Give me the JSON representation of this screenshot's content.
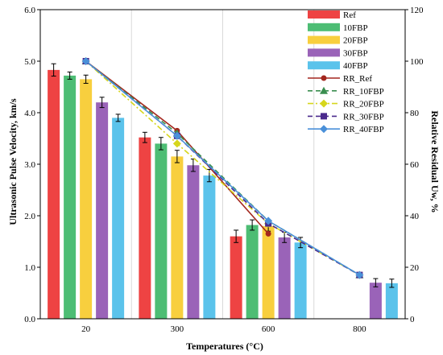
{
  "chart_data": {
    "type": "bar",
    "title": "",
    "categories": [
      "20",
      "300",
      "600",
      "800"
    ],
    "xlabel": "Temperatures (°C)",
    "ylabel": "Ultrasonic Pulse Velocity, km/s",
    "y2label": "Relative Residual Uw, %",
    "ylim": [
      0,
      6
    ],
    "y2lim": [
      0,
      120
    ],
    "yticks": [
      "0.0",
      "1.0",
      "2.0",
      "3.0",
      "4.0",
      "5.0",
      "6.0"
    ],
    "y2ticks": [
      "0",
      "20",
      "40",
      "60",
      "80",
      "100",
      "120"
    ],
    "grid": "vertical gridlines",
    "legend_position": "top-right",
    "bar_series": [
      {
        "name": "Ref",
        "color": "#EE4343",
        "values": [
          4.83,
          3.52,
          1.6,
          null
        ],
        "errors": [
          0.12,
          0.1,
          0.12,
          null
        ]
      },
      {
        "name": "10FBP",
        "color": "#4DBD74",
        "values": [
          4.72,
          3.4,
          1.82,
          null
        ],
        "errors": [
          0.07,
          0.12,
          0.1,
          null
        ]
      },
      {
        "name": "20FBP",
        "color": "#F8CF3E",
        "values": [
          4.65,
          3.15,
          1.8,
          null
        ],
        "errors": [
          0.08,
          0.12,
          0.1,
          null
        ]
      },
      {
        "name": "30FBP",
        "color": "#9A63B8",
        "values": [
          4.2,
          2.98,
          1.58,
          0.7
        ],
        "errors": [
          0.1,
          0.12,
          0.1,
          0.08
        ]
      },
      {
        "name": "40FBP",
        "color": "#5BC3EB",
        "values": [
          3.9,
          2.78,
          1.48,
          0.69
        ],
        "errors": [
          0.07,
          0.12,
          0.1,
          0.08
        ]
      }
    ],
    "line_series": [
      {
        "name": "RR_Ref",
        "color": "#A3271E",
        "dash": "solid",
        "marker": "circle",
        "x": [
          "20",
          "300",
          "600"
        ],
        "y2": [
          100,
          73,
          33
        ]
      },
      {
        "name": "RR_10FBP",
        "color": "#3A8E4F",
        "dash": "dashed",
        "marker": "triangle",
        "x": [
          "20",
          "300",
          "600",
          "800"
        ],
        "y2": [
          100,
          72,
          38,
          17
        ]
      },
      {
        "name": "RR_20FBP",
        "color": "#D6D61C",
        "dash": "dashdot",
        "marker": "diamond",
        "x": [
          "20",
          "300",
          "600",
          "800"
        ],
        "y2": [
          100,
          68,
          37,
          17
        ]
      },
      {
        "name": "RR_30FBP",
        "color": "#4A2A8C",
        "dash": "dashed",
        "marker": "square",
        "x": [
          "20",
          "300",
          "600",
          "800"
        ],
        "y2": [
          100,
          71,
          37,
          17
        ]
      },
      {
        "name": "RR_40FBP",
        "color": "#4A90D9",
        "dash": "solid",
        "marker": "diamond",
        "x": [
          "20",
          "300",
          "600",
          "800"
        ],
        "y2": [
          100,
          71,
          38,
          17
        ]
      }
    ]
  }
}
